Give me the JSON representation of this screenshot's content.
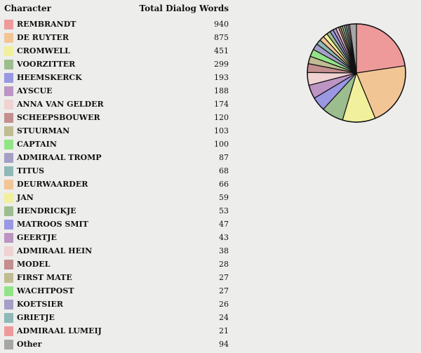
{
  "table": {
    "col_character": "Character",
    "col_words": "Total Dialog Words"
  },
  "chart_data": {
    "type": "pie",
    "title": "",
    "categories": [
      "REMBRANDT",
      "DE RUYTER",
      "CROMWELL",
      "VOORZITTER",
      "HEEMSKERCK",
      "AYSCUE",
      "ANNA VAN GELDER",
      "SCHEEPSBOUWER",
      "STUURMAN",
      "CAPTAIN",
      "ADMIRAAL TROMP",
      "TITUS",
      "DEURWAARDER",
      "JAN",
      "HENDRICKJE",
      "MATROOS SMIT",
      "GEERTJE",
      "ADMIRAAL HEIN",
      "MODEL",
      "FIRST MATE",
      "WACHTPOST",
      "KOETSIER",
      "GRIETJE",
      "ADMIRAAL LUMEIJ",
      "Other"
    ],
    "values": [
      940,
      875,
      451,
      299,
      193,
      188,
      174,
      120,
      103,
      100,
      87,
      68,
      66,
      59,
      53,
      47,
      43,
      38,
      28,
      27,
      27,
      26,
      24,
      21,
      94
    ],
    "colors": [
      "#ef9a9a",
      "#f2c595",
      "#f1f09c",
      "#9cbe8e",
      "#9a97e3",
      "#bd94c4",
      "#f0d2d2",
      "#c38f8f",
      "#c0bc92",
      "#93e487",
      "#a59ec6",
      "#8fb8b6",
      "#f2c595",
      "#f1f09c",
      "#9cbe8e",
      "#9a97e3",
      "#bd94c4",
      "#f0d2d2",
      "#c38f8f",
      "#c0bc92",
      "#93e487",
      "#a59ec6",
      "#8fb8b6",
      "#ef9a9a",
      "#a6a6a6"
    ],
    "legend": "left"
  }
}
